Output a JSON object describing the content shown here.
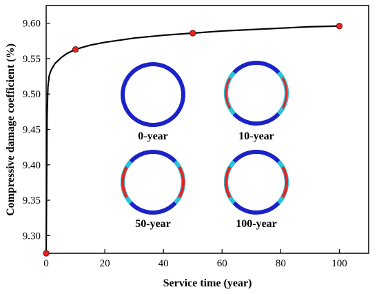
{
  "chart_data": {
    "type": "line",
    "xlabel": "Service time (year)",
    "ylabel": "Compressive damage coefficient (%)",
    "xlim": [
      0,
      110
    ],
    "ylim": [
      9.275,
      9.625
    ],
    "x_ticks": [
      0,
      20,
      40,
      60,
      80,
      100
    ],
    "y_ticks": [
      9.3,
      9.35,
      9.4,
      9.45,
      9.5,
      9.55,
      9.6
    ],
    "x_tick_labels": [
      "0",
      "20",
      "40",
      "60",
      "80",
      "100"
    ],
    "y_tick_labels": [
      "9.30",
      "9.35",
      "9.40",
      "9.45",
      "9.50",
      "9.55",
      "9.60"
    ],
    "grid": false,
    "legend": "none",
    "series": [
      {
        "color": "#000000",
        "line_x": [
          0,
          0.3,
          0.6,
          1,
          1.5,
          2,
          3,
          5,
          7,
          10,
          15,
          20,
          30,
          40,
          50,
          60,
          70,
          80,
          90,
          100
        ],
        "line_y": [
          9.275,
          9.47,
          9.51,
          9.525,
          9.532,
          9.536,
          9.543,
          9.551,
          9.557,
          9.563,
          9.569,
          9.573,
          9.579,
          9.583,
          9.586,
          9.589,
          9.591,
          9.593,
          9.595,
          9.596
        ]
      }
    ],
    "markers": {
      "color": "#e8231f",
      "x": [
        0,
        10,
        50,
        100
      ],
      "y": [
        9.275,
        9.563,
        9.586,
        9.596
      ]
    },
    "insets": [
      {
        "label": "0-year",
        "damage": "none"
      },
      {
        "label": "10-year",
        "damage": "medium"
      },
      {
        "label": "50-year",
        "damage": "high"
      },
      {
        "label": "100-year",
        "damage": "high"
      }
    ],
    "ring_colors": {
      "base": "#1a22c8",
      "damage": "#e8231f",
      "transition": "#29c4d6"
    }
  }
}
